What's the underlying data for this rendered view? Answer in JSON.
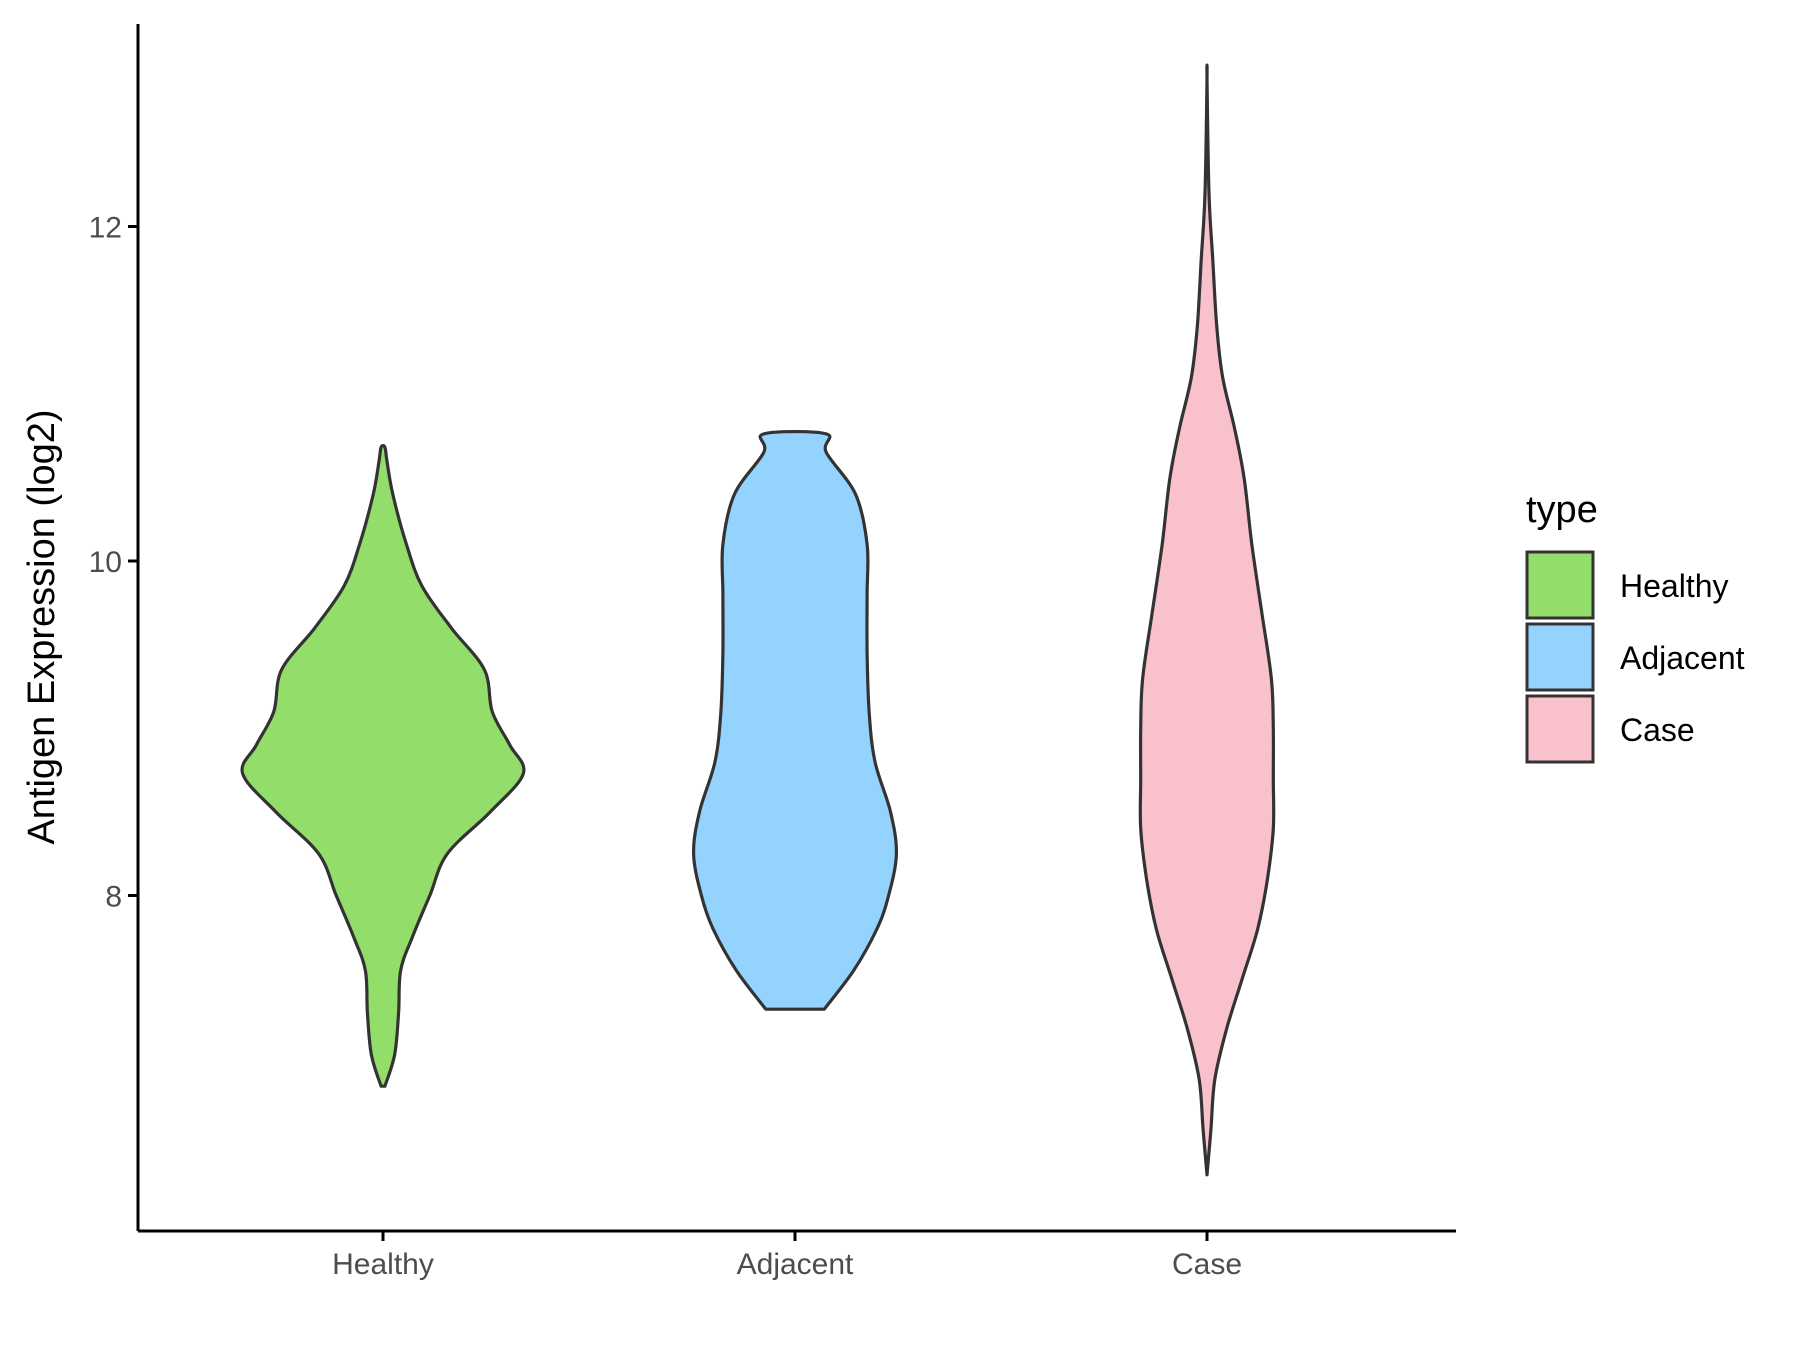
{
  "chart_data": {
    "type": "violin",
    "xlabel": "",
    "ylabel": "Antigen Expression (log2)",
    "ylim": [
      6.1,
      13.3
    ],
    "yticks": [
      8,
      10,
      12
    ],
    "categories": [
      "Healthy",
      "Adjacent",
      "Case"
    ],
    "legend": {
      "title": "type",
      "position": "right",
      "entries": [
        "Healthy",
        "Adjacent",
        "Case"
      ]
    },
    "grid": false,
    "series": [
      {
        "name": "Healthy",
        "color": "#93dd6a",
        "min": 6.86,
        "max": 10.68,
        "profile": [
          [
            6.86,
            0.01
          ],
          [
            7.05,
            0.06
          ],
          [
            7.3,
            0.08
          ],
          [
            7.55,
            0.09
          ],
          [
            7.75,
            0.15
          ],
          [
            8.0,
            0.24
          ],
          [
            8.25,
            0.33
          ],
          [
            8.5,
            0.55
          ],
          [
            8.73,
            0.72
          ],
          [
            8.9,
            0.65
          ],
          [
            9.1,
            0.56
          ],
          [
            9.35,
            0.52
          ],
          [
            9.6,
            0.35
          ],
          [
            9.85,
            0.2
          ],
          [
            10.1,
            0.12
          ],
          [
            10.4,
            0.05
          ],
          [
            10.6,
            0.02
          ],
          [
            10.68,
            0.01
          ]
        ]
      },
      {
        "name": "Adjacent",
        "color": "#93d3fe",
        "min": 7.32,
        "max": 10.76,
        "profile": [
          [
            7.32,
            0.15
          ],
          [
            7.55,
            0.3
          ],
          [
            7.8,
            0.42
          ],
          [
            8.0,
            0.48
          ],
          [
            8.25,
            0.52
          ],
          [
            8.5,
            0.49
          ],
          [
            8.8,
            0.41
          ],
          [
            9.1,
            0.38
          ],
          [
            9.45,
            0.37
          ],
          [
            9.8,
            0.37
          ],
          [
            10.1,
            0.37
          ],
          [
            10.4,
            0.31
          ],
          [
            10.65,
            0.16
          ],
          [
            10.76,
            0.16
          ]
        ]
      },
      {
        "name": "Case",
        "color": "#f8c1cc",
        "min": 6.33,
        "max": 12.88,
        "profile": [
          [
            6.33,
            0.0
          ],
          [
            6.6,
            0.02
          ],
          [
            6.9,
            0.04
          ],
          [
            7.2,
            0.1
          ],
          [
            7.5,
            0.18
          ],
          [
            7.8,
            0.26
          ],
          [
            8.1,
            0.31
          ],
          [
            8.4,
            0.34
          ],
          [
            8.7,
            0.34
          ],
          [
            9.0,
            0.34
          ],
          [
            9.3,
            0.33
          ],
          [
            9.7,
            0.28
          ],
          [
            10.1,
            0.23
          ],
          [
            10.5,
            0.19
          ],
          [
            10.8,
            0.14
          ],
          [
            11.1,
            0.08
          ],
          [
            11.4,
            0.05
          ],
          [
            11.8,
            0.03
          ],
          [
            12.2,
            0.01
          ],
          [
            12.88,
            0.0
          ]
        ]
      }
    ]
  }
}
